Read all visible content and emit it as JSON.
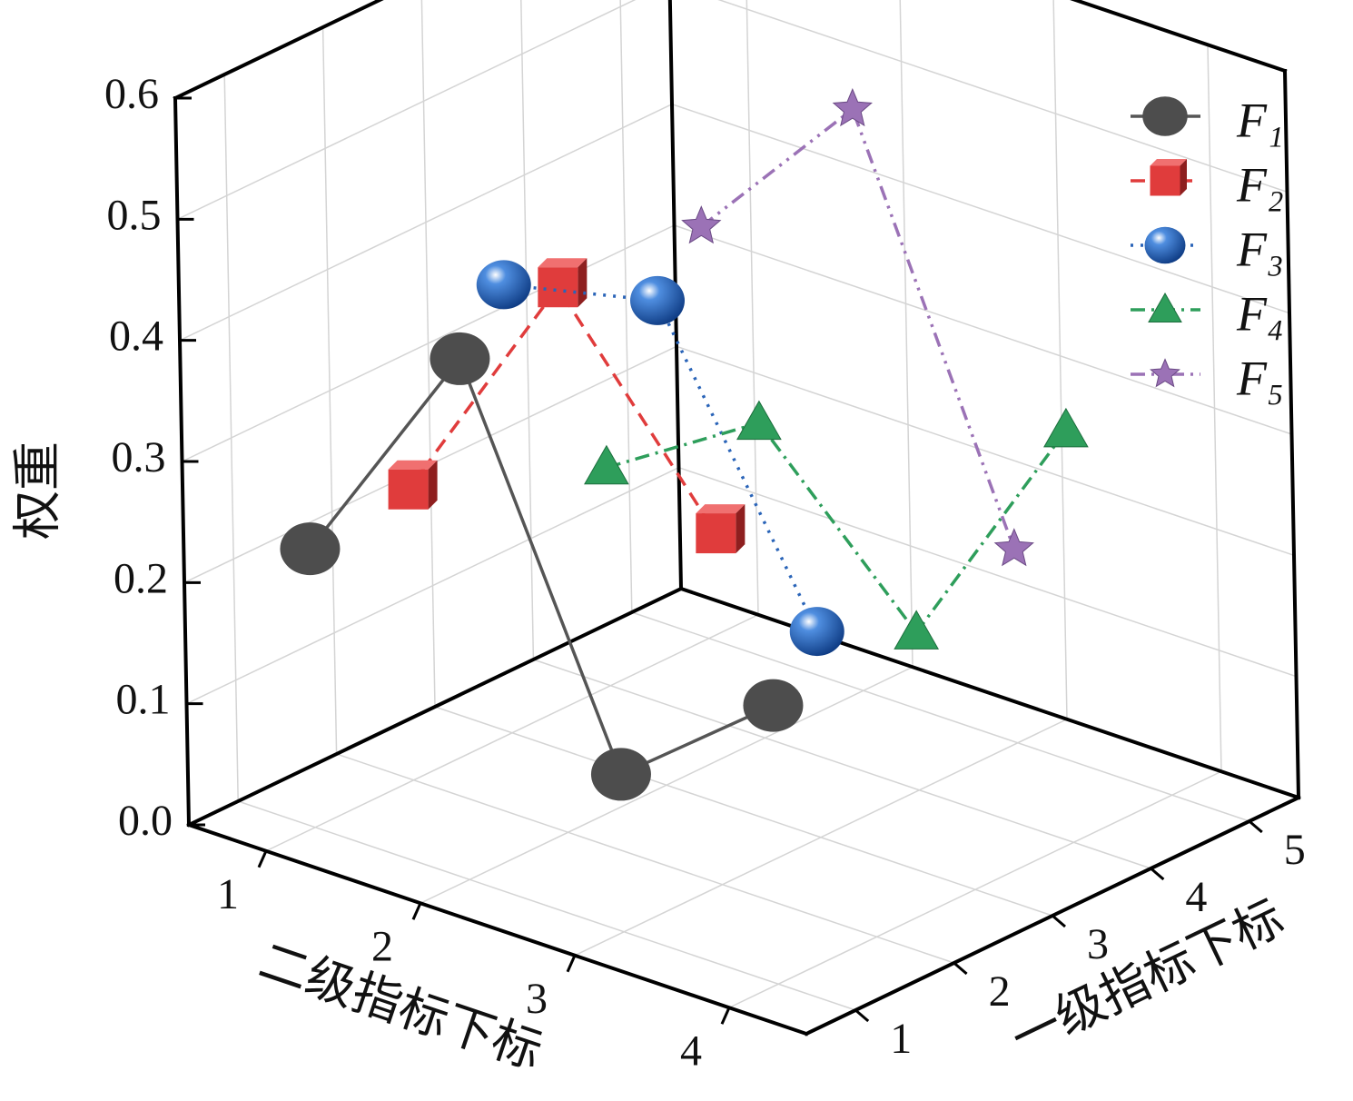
{
  "chart_data": {
    "type": "scatter3d",
    "x_label": "二级指标下标",
    "y_label": "一级指标下标",
    "z_label": "权重",
    "xlim": [
      0.5,
      4.5
    ],
    "xticks": [
      1,
      2,
      3,
      4
    ],
    "ylim": [
      0.5,
      5.5
    ],
    "yticks": [
      1,
      2,
      3,
      4,
      5
    ],
    "zlim": [
      0,
      0.6
    ],
    "zticks": [
      {
        "value": 0,
        "label": "0.0"
      },
      0.1,
      0.2,
      0.3,
      0.4,
      0.5,
      0.6
    ],
    "grid": true,
    "legend": "upper right",
    "series": [
      {
        "name": "F₁",
        "color": "#4d4d4d",
        "marker": "circle",
        "line_style": "solid",
        "y": 1,
        "x": [
          1,
          2,
          3,
          4
        ],
        "values": [
          0.23,
          0.43,
          0.13,
          0.23
        ]
      },
      {
        "name": "F₂",
        "color": "#e03c3c",
        "marker": "cube",
        "line_style": "dashed",
        "y": 2,
        "x": [
          1,
          2,
          3
        ],
        "values": [
          0.24,
          0.45,
          0.29
        ]
      },
      {
        "name": "F₃",
        "color": "#2a64b8",
        "marker": "sphere",
        "line_style": "dotted",
        "y": 3,
        "x": [
          1,
          2,
          3
        ],
        "values": [
          0.37,
          0.4,
          0.17
        ]
      },
      {
        "name": "F₄",
        "color": "#2e9e5b",
        "marker": "triangle",
        "line_style": "dashdot",
        "y": 4,
        "x": [
          1,
          2,
          3,
          4
        ],
        "values": [
          0.18,
          0.26,
          0.13,
          0.34
        ]
      },
      {
        "name": "F₅",
        "color": "#9b72b6",
        "marker": "star",
        "line_style": "dashdotdot",
        "y": 5,
        "x": [
          1,
          2,
          3
        ],
        "values": [
          0.34,
          0.48,
          0.16
        ]
      }
    ]
  }
}
